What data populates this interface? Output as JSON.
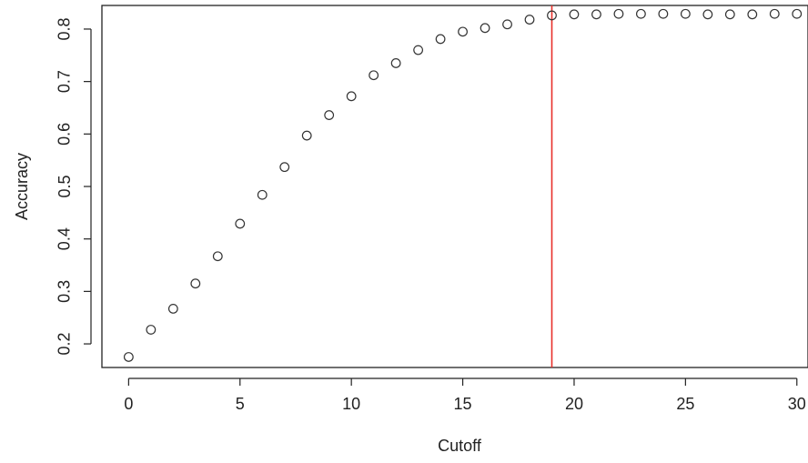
{
  "chart_data": {
    "type": "scatter",
    "title": "",
    "xlabel": "Cutoff",
    "ylabel": "Accuracy",
    "xlim": [
      -1.2,
      30.5
    ],
    "ylim": [
      0.155,
      0.845
    ],
    "x_ticks": [
      0,
      5,
      10,
      15,
      20,
      25,
      30
    ],
    "y_ticks": [
      0.2,
      0.3,
      0.4,
      0.5,
      0.6,
      0.7,
      0.8
    ],
    "x_tick_labels": [
      "0",
      "5",
      "10",
      "15",
      "20",
      "25",
      "30"
    ],
    "y_tick_labels": [
      "0.2",
      "0.3",
      "0.4",
      "0.5",
      "0.6",
      "0.7",
      "0.8"
    ],
    "grid": false,
    "series": [
      {
        "marker": "open-circle",
        "color": "#333333",
        "x": [
          0,
          1,
          2,
          3,
          4,
          5,
          6,
          7,
          8,
          9,
          10,
          11,
          12,
          13,
          14,
          15,
          16,
          17,
          18,
          19,
          20,
          21,
          22,
          23,
          24,
          25,
          26,
          27,
          28,
          29,
          30
        ],
        "y": [
          0.175,
          0.227,
          0.267,
          0.315,
          0.367,
          0.429,
          0.484,
          0.537,
          0.597,
          0.636,
          0.672,
          0.712,
          0.735,
          0.76,
          0.781,
          0.795,
          0.802,
          0.809,
          0.818,
          0.826,
          0.828,
          0.828,
          0.829,
          0.829,
          0.829,
          0.829,
          0.828,
          0.828,
          0.828,
          0.829,
          0.829
        ]
      }
    ],
    "reference_lines": [
      {
        "orientation": "vertical",
        "x": 19,
        "color": "#e8302a"
      }
    ]
  }
}
